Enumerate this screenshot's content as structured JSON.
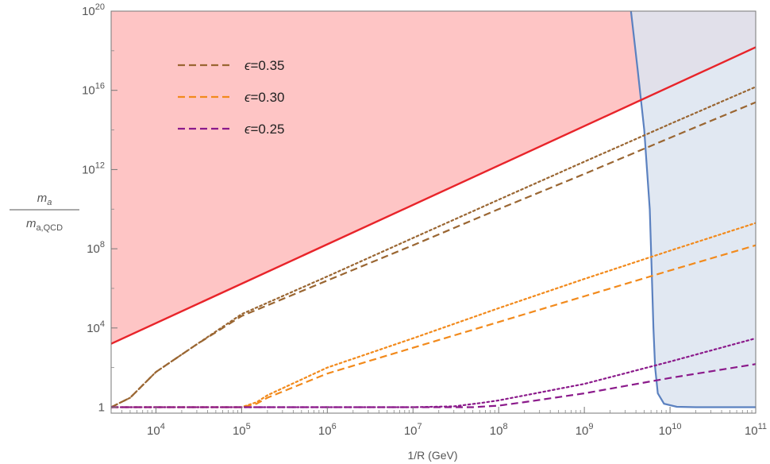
{
  "chart_data": {
    "type": "line",
    "x_scale": "log",
    "y_scale": "log",
    "xlim": [
      3000,
      100000000000
    ],
    "ylim": [
      0.5,
      100000000000000000000
    ],
    "xlabel": "1/R  (GeV)",
    "ylabel": {
      "numerator": "m",
      "numerator_sub": "a",
      "denominator": "m",
      "denominator_sub": "a,QCD"
    },
    "x_ticks": [
      {
        "value": 10000,
        "base": "10",
        "exp": "4"
      },
      {
        "value": 100000,
        "base": "10",
        "exp": "5"
      },
      {
        "value": 1000000,
        "base": "10",
        "exp": "6"
      },
      {
        "value": 10000000,
        "base": "10",
        "exp": "7"
      },
      {
        "value": 100000000,
        "base": "10",
        "exp": "8"
      },
      {
        "value": 1000000000,
        "base": "10",
        "exp": "9"
      },
      {
        "value": 10000000000,
        "base": "10",
        "exp": "10"
      },
      {
        "value": 100000000000,
        "base": "10",
        "exp": "11"
      }
    ],
    "y_ticks": [
      {
        "value": 1,
        "base": "1",
        "exp": ""
      },
      {
        "value": 10000,
        "base": "10",
        "exp": "4"
      },
      {
        "value": 100000000,
        "base": "10",
        "exp": "8"
      },
      {
        "value": 1000000000000,
        "base": "10",
        "exp": "12"
      },
      {
        "value": 10000000000000000,
        "base": "10",
        "exp": "16"
      },
      {
        "value": 100000000000000000000,
        "base": "10",
        "exp": "20"
      }
    ],
    "legend": {
      "position": "top-left",
      "entries": [
        {
          "symbol": "ϵ",
          "label": "=0.35",
          "color": "#9a6632"
        },
        {
          "symbol": "ϵ",
          "label": "=0.30",
          "color": "#f28a1c"
        },
        {
          "symbol": "ϵ",
          "label": "=0.25",
          "color": "#8b1a8b"
        }
      ]
    },
    "regions": [
      {
        "name": "excluded-above-red-line",
        "color": "#fec5c5",
        "edge_color": "#e8242a",
        "boundary": {
          "x": [
            3000,
            100000000000
          ],
          "y": [
            1600,
            1.5e+18
          ]
        }
      },
      {
        "name": "excluded-right-blue",
        "color": "#dce4f0",
        "edge_color": "#5b81c0",
        "boundary": {
          "x": [
            3500000000.0,
            4200000000.0,
            5000000000.0,
            5800000000.0,
            6100000000.0,
            6400000000.0,
            6700000000.0,
            7200000000.0,
            8500000000.0,
            12000000000.0,
            20000000000.0,
            50000000000.0,
            100000000000.0
          ],
          "y": [
            1e+20,
            1e+17,
            100000000000000.0,
            10000000000.0,
            10000000.0,
            10000.0,
            100.0,
            5,
            1.5,
            1.05,
            1.0,
            1.0,
            1.0
          ]
        }
      }
    ],
    "series": [
      {
        "name": "ϵ=0.35",
        "style": "dashed",
        "color": "#9a6632",
        "x": [
          3000,
          5000,
          10000,
          30000,
          100000,
          1000000,
          10000000,
          100000000,
          1000000000,
          10000000000,
          100000000000
        ],
        "y": [
          1,
          3,
          60,
          1500,
          40000,
          2500000.0,
          150000000.0,
          10000000000.0,
          600000000000.0,
          40000000000000.0,
          2500000000000000.0
        ]
      },
      {
        "name": "ϵ=0.35 (dotted)",
        "style": "dotted",
        "color": "#9a6632",
        "x": [
          3000,
          5000,
          10000,
          30000,
          100000,
          1000000,
          10000000,
          100000000,
          1000000000,
          10000000000,
          100000000000
        ],
        "y": [
          1,
          3,
          60,
          1500,
          50000,
          4000000.0,
          350000000.0,
          30000000000.0,
          2500000000000.0,
          200000000000000.0,
          1.5e+16
        ]
      },
      {
        "name": "ϵ=0.30",
        "style": "dashed",
        "color": "#f28a1c",
        "x": [
          3000,
          100000,
          150000,
          200000,
          1000000,
          10000000,
          100000000,
          1000000000,
          10000000000,
          100000000000
        ],
        "y": [
          1,
          1,
          1.5,
          3,
          50,
          1000,
          20000.0,
          400000.0,
          8000000.0,
          150000000.0
        ]
      },
      {
        "name": "ϵ=0.30 (dotted)",
        "style": "dotted",
        "color": "#f28a1c",
        "x": [
          3000,
          100000,
          150000,
          200000,
          1000000,
          10000000,
          100000000,
          1000000000,
          10000000000,
          100000000000
        ],
        "y": [
          1,
          1,
          1.8,
          4,
          100,
          3000,
          100000.0,
          3000000.0,
          80000000.0,
          2000000000.0
        ]
      },
      {
        "name": "ϵ=0.25",
        "style": "dashed",
        "color": "#8b1a8b",
        "x": [
          3000,
          10000000,
          50000000,
          100000000,
          200000000,
          1000000000,
          10000000000,
          100000000000
        ],
        "y": [
          1,
          1,
          1,
          1.2,
          1.8,
          5,
          30,
          150
        ]
      },
      {
        "name": "ϵ=0.25 (dotted)",
        "style": "dotted",
        "color": "#8b1a8b",
        "x": [
          3000,
          10000000,
          30000000,
          60000000,
          100000000,
          1000000000,
          10000000000,
          100000000000
        ],
        "y": [
          1,
          1,
          1.1,
          1.6,
          2.2,
          15,
          200,
          3000
        ]
      }
    ]
  }
}
